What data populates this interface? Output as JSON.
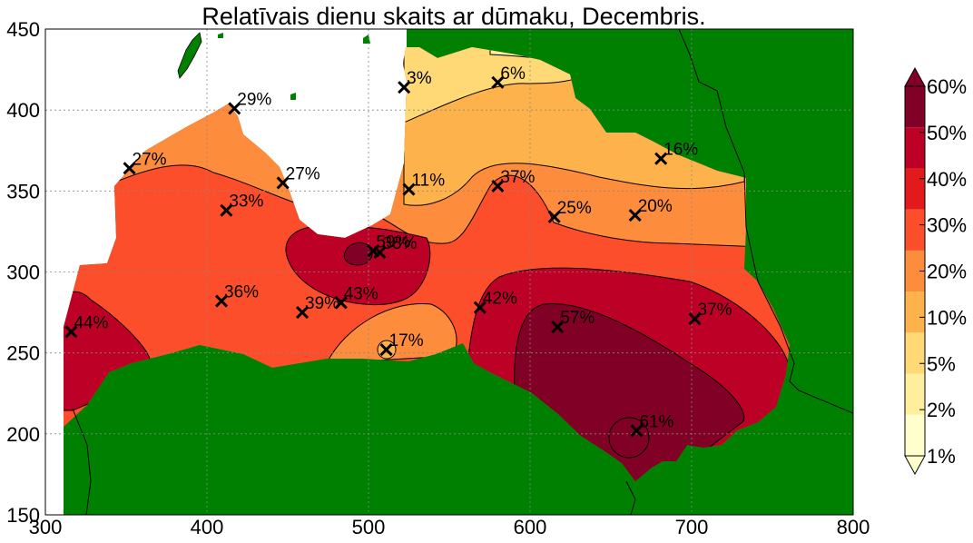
{
  "chart_data": {
    "type": "heatmap",
    "title": "Relatīvais dienu skaits ar dūmaku, Decembris.",
    "xlim": [
      300,
      800
    ],
    "ylim": [
      150,
      450
    ],
    "x_ticks": [
      "300",
      "400",
      "500",
      "600",
      "700",
      "800"
    ],
    "y_ticks": [
      "150",
      "200",
      "250",
      "300",
      "350",
      "400",
      "450"
    ],
    "grid": true,
    "colorbar": {
      "placement": "right",
      "levels": [
        1,
        2,
        5,
        10,
        20,
        30,
        40,
        50,
        60
      ],
      "labels": [
        "1%",
        "2%",
        "5%",
        "10%",
        "20%",
        "30%",
        "40%",
        "50%",
        "60%"
      ],
      "colors": [
        "#ffffcc",
        "#ffeda0",
        "#fed976",
        "#feb24c",
        "#fd8d3c",
        "#fc4e2a",
        "#e31a1c",
        "#bd0026",
        "#800026"
      ]
    },
    "colors": {
      "land_outside": "#008000",
      "sea": "#ffffff",
      "contour_line": "#000000"
    },
    "stations": [
      {
        "x": 316,
        "y": 263,
        "label": "44%"
      },
      {
        "x": 352,
        "y": 364,
        "label": "27%"
      },
      {
        "x": 417,
        "y": 401,
        "label": "29%"
      },
      {
        "x": 412,
        "y": 338,
        "label": "33%"
      },
      {
        "x": 447,
        "y": 355,
        "label": "27%"
      },
      {
        "x": 409,
        "y": 282,
        "label": "36%"
      },
      {
        "x": 459,
        "y": 275,
        "label": "39%"
      },
      {
        "x": 483,
        "y": 281,
        "label": "43%"
      },
      {
        "x": 503,
        "y": 313,
        "label": "59%"
      },
      {
        "x": 507,
        "y": 312,
        "label": "38%"
      },
      {
        "x": 522,
        "y": 414,
        "label": "3%"
      },
      {
        "x": 525,
        "y": 351,
        "label": "11%"
      },
      {
        "x": 511,
        "y": 252,
        "label": "17%"
      },
      {
        "x": 580,
        "y": 417,
        "label": "6%"
      },
      {
        "x": 580,
        "y": 353,
        "label": "37%"
      },
      {
        "x": 569,
        "y": 278,
        "label": "42%"
      },
      {
        "x": 615,
        "y": 334,
        "label": "25%"
      },
      {
        "x": 617,
        "y": 266,
        "label": "57%"
      },
      {
        "x": 665,
        "y": 335,
        "label": "20%"
      },
      {
        "x": 681,
        "y": 370,
        "label": "16%"
      },
      {
        "x": 702,
        "y": 271,
        "label": "37%"
      },
      {
        "x": 666,
        "y": 202,
        "label": "61%"
      }
    ]
  }
}
